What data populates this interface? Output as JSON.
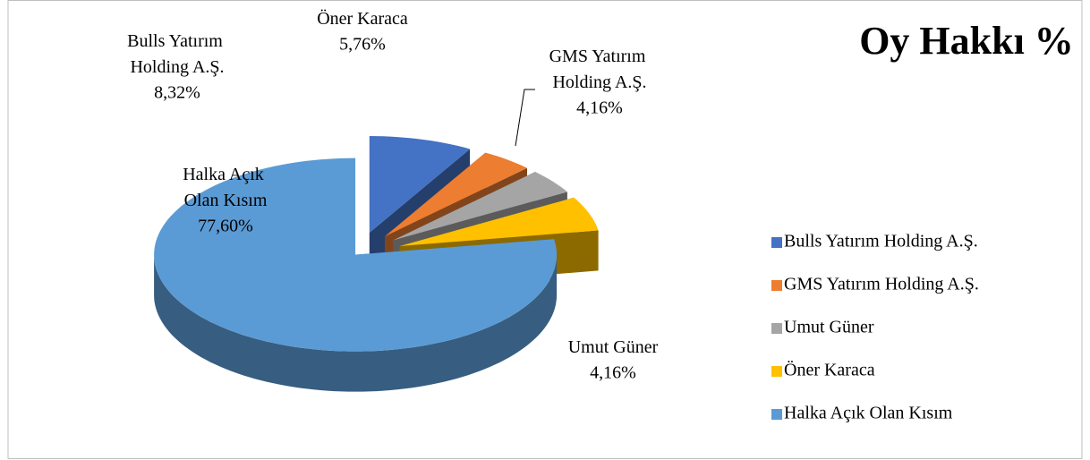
{
  "chart_data": {
    "type": "pie",
    "title": "Oy Hakkı %",
    "categories": [
      "Bulls Yatırım Holding A.Ş.",
      "GMS Yatırım Holding A.Ş.",
      "Umut Güner",
      "Öner Karaca",
      "Halka Açık Olan Kısım"
    ],
    "values": [
      8.32,
      4.16,
      4.16,
      5.76,
      77.6
    ],
    "value_labels": [
      "8,32%",
      "4,16%",
      "4,16%",
      "5,76%",
      "77,60%"
    ],
    "colors": [
      "#4472c4",
      "#ed7d31",
      "#a5a5a5",
      "#ffc000",
      "#5b9bd5"
    ],
    "legend": "right"
  }
}
